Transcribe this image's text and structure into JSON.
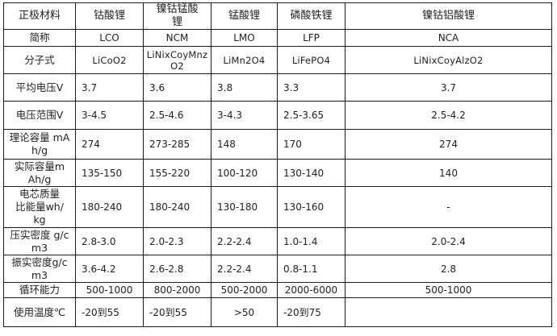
{
  "header": [
    "正极材料",
    "钴酸锂",
    "镍钴锰酸锂",
    "锰酸锂",
    "磷酸铁锂",
    "镍钴铝酸锂"
  ],
  "rows": [
    {
      "label": "简称",
      "values": [
        "LCO",
        "NCM",
        "LMO",
        "LFP",
        "NCA"
      ]
    },
    {
      "label": "分子式",
      "values": [
        "LiCoO2",
        "LiNixCoyMnzO2",
        "LiMn2O4",
        "LiFePO4",
        "LiNixCoyAlzO2"
      ]
    },
    {
      "label": "平均电压V",
      "values": [
        "3.7",
        "3.6",
        "3.8",
        "3.3",
        "3.7"
      ]
    },
    {
      "label": "电压范围V",
      "values": [
        "3-4.5",
        "2.5-4.6",
        "3-4.3",
        "2.5-3.65",
        "2.5-4.2"
      ]
    },
    {
      "label": "理论容量 mAh/g",
      "values": [
        "274",
        "273-285",
        "148",
        "170",
        "274"
      ]
    },
    {
      "label": "实际容量mAh/g",
      "values": [
        "135-150",
        "155-220",
        "100-120",
        "130-140",
        "140"
      ]
    },
    {
      "label": "电芯质量比能量wh/kg",
      "values": [
        "180-240",
        "180-240",
        "130-180",
        "130-160",
        "-"
      ]
    },
    {
      "label": "压实密度 g/cm3",
      "values": [
        "2.8-3.0",
        "2.0-2.3",
        "2.2-2.4",
        "1.0-1.4",
        "2.0-2.4"
      ]
    },
    {
      "label": "振实密度g/cm3",
      "values": [
        "3.6-4.2",
        "2.6-2.8",
        "2.2-2.4",
        "0.8-1.1",
        "2.8"
      ]
    },
    {
      "label": "循环能力",
      "values": [
        "500-1000",
        "800-2000",
        "500-2000",
        "2000-6000",
        "500-1000"
      ]
    },
    {
      "label": "使用温度℃",
      "values": [
        "-20到55",
        "-20到55",
        ">50",
        "-20到75",
        ""
      ]
    }
  ]
}
